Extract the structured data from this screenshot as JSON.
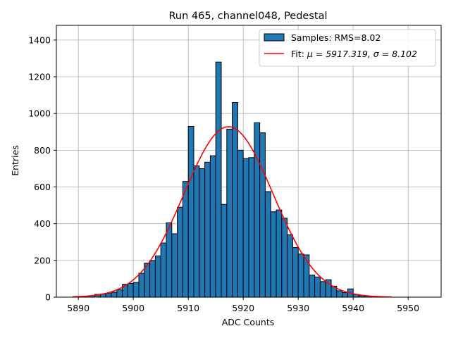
{
  "chart_data": {
    "type": "bar",
    "title": "Run 465, channel048, Pedestal",
    "xlabel": "ADC Counts",
    "ylabel": "Entries",
    "xlim": [
      5886,
      5956
    ],
    "ylim": [
      0,
      1480
    ],
    "xticks": [
      5890,
      5900,
      5910,
      5920,
      5930,
      5940,
      5950
    ],
    "yticks": [
      0,
      200,
      400,
      600,
      800,
      1000,
      1200,
      1400
    ],
    "xtick_labels": [
      "5890",
      "5900",
      "5910",
      "5920",
      "5930",
      "5940",
      "5950"
    ],
    "ytick_labels": [
      "0",
      "200",
      "400",
      "600",
      "800",
      "1000",
      "1200",
      "1400"
    ],
    "grid": true,
    "legend_position": "top-right",
    "bin_width": 1,
    "histogram": {
      "name": "Samples: RMS=8.02",
      "color": "#1f77b4",
      "edgecolor": "#000000",
      "bins_left": [
        5889,
        5890,
        5891,
        5892,
        5893,
        5894,
        5895,
        5896,
        5897,
        5898,
        5899,
        5900,
        5901,
        5902,
        5903,
        5904,
        5905,
        5906,
        5907,
        5908,
        5909,
        5910,
        5911,
        5912,
        5913,
        5914,
        5915,
        5916,
        5917,
        5918,
        5919,
        5920,
        5921,
        5922,
        5923,
        5924,
        5925,
        5926,
        5927,
        5928,
        5929,
        5930,
        5931,
        5932,
        5933,
        5934,
        5935,
        5936,
        5937,
        5938,
        5939,
        5940,
        5941,
        5942,
        5943
      ],
      "counts": [
        2,
        3,
        5,
        8,
        15,
        17,
        20,
        27,
        40,
        70,
        75,
        80,
        130,
        185,
        200,
        225,
        295,
        405,
        345,
        490,
        630,
        930,
        715,
        700,
        735,
        770,
        1280,
        505,
        915,
        1060,
        800,
        755,
        760,
        950,
        895,
        575,
        465,
        475,
        430,
        340,
        270,
        235,
        230,
        120,
        110,
        85,
        95,
        60,
        35,
        25,
        45,
        15,
        8,
        3,
        2
      ]
    },
    "fit": {
      "name": "Fit: μ = 5917.319, σ = 8.102",
      "color": "#ff0000",
      "type": "gaussian",
      "mu": 5917.319,
      "sigma": 8.102,
      "amplitude": 928,
      "x_range": [
        5889,
        5947
      ]
    }
  },
  "legend": {
    "items": [
      {
        "label": "Samples: RMS=8.02",
        "kind": "patch",
        "color": "#1f77b4"
      },
      {
        "label": "Fit: ",
        "math": "μ = 5917.319, σ = 8.102",
        "kind": "line",
        "color": "#ff0000"
      }
    ]
  }
}
